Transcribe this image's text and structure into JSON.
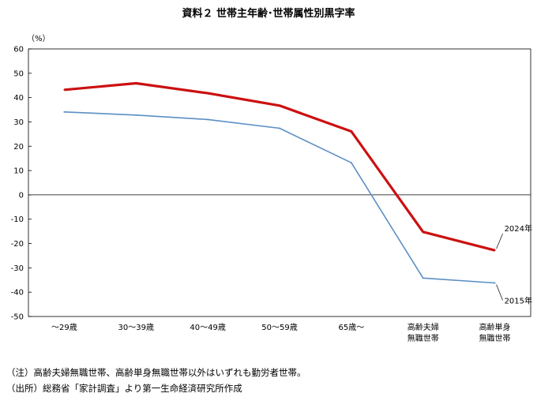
{
  "chart_data": {
    "type": "line",
    "title": "資料２ 世帯主年齢･世帯属性別黒字率",
    "ylabel": "（%）",
    "xlabel": "",
    "ylim": [
      -50,
      60
    ],
    "yticks": [
      60,
      50,
      40,
      30,
      20,
      10,
      0,
      -10,
      -20,
      -30,
      -40,
      -50
    ],
    "categories": [
      [
        "～29歳"
      ],
      [
        "30～39歳"
      ],
      [
        "40～49歳"
      ],
      [
        "50～59歳"
      ],
      [
        "65歳～"
      ],
      [
        "高齢夫婦",
        "無職世帯"
      ],
      [
        "高齢単身",
        "無職世帯"
      ]
    ],
    "series": [
      {
        "name": "2024年",
        "color": "#cc1010",
        "values": [
          43.2,
          45.9,
          41.8,
          36.7,
          26.1,
          -15.2,
          -22.8
        ]
      },
      {
        "name": "2015年",
        "color": "#5b8fc4",
        "values": [
          34.1,
          32.8,
          31.0,
          27.4,
          13.2,
          -34.2,
          -36.2
        ]
      }
    ],
    "grid": false,
    "legend": "inline-right"
  },
  "notes": {
    "note1": "（注）高齢夫婦無職世帯、高齢単身無職世帯以外はいずれも勤労者世帯。",
    "note2": "（出所）総務省「家計調査」より第一生命経済研究所作成"
  }
}
